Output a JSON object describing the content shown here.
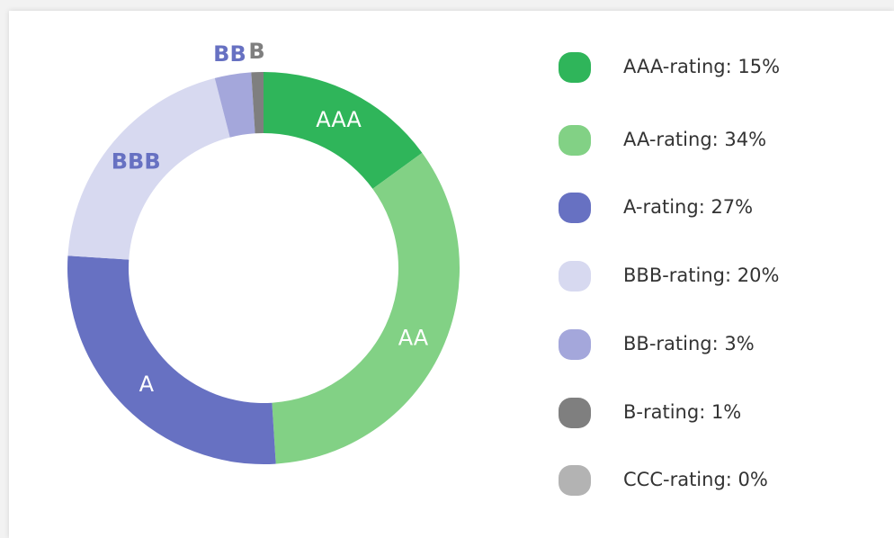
{
  "chart_data": {
    "type": "donut",
    "categories": [
      "AAA",
      "AA",
      "A",
      "BBB",
      "BB",
      "B",
      null
    ],
    "values": [
      15,
      34,
      27,
      20,
      3,
      1,
      0
    ],
    "colors": [
      "#2fb55a",
      "#82d185",
      "#6771c2",
      "#d7d9f0",
      "#a4a7db",
      "#7f7f7f",
      "#b3b3b3"
    ],
    "label_colors": [
      "#ffffff",
      "#ffffff",
      "#ffffff",
      "#6771c2",
      "#6771c2",
      "#7f7f7f",
      "#7f7f7f"
    ],
    "legend_labels": [
      "AAA-rating: 15%",
      "AA-rating: 34%",
      "A-rating: 27%",
      "BBB-rating: 20%",
      "BB-rating: 3%",
      "B-rating: 1%",
      "CCC-rating: 0%"
    ]
  }
}
